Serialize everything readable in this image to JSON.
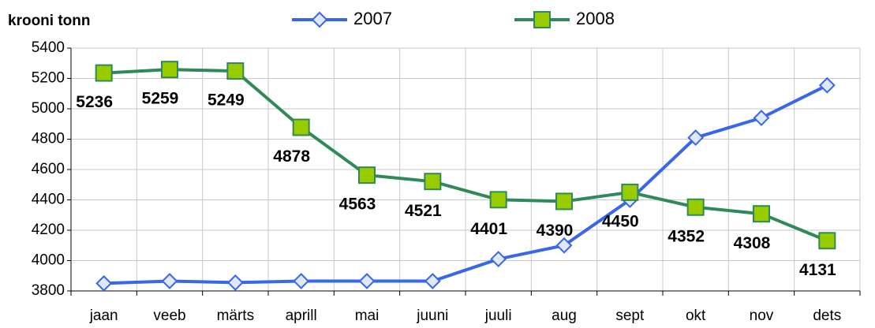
{
  "chart_data": {
    "type": "line",
    "y_label": "krooni tonn",
    "categories": [
      "jaan",
      "veeb",
      "märts",
      "aprill",
      "mai",
      "juuni",
      "juuli",
      "aug",
      "sept",
      "okt",
      "nov",
      "dets"
    ],
    "series": [
      {
        "name": "2007",
        "color": "#3a66e8",
        "marker": "diamond",
        "marker_fill": "#dfe8ff",
        "values": [
          3850,
          3865,
          3855,
          3865,
          3865,
          3865,
          4010,
          4100,
          4400,
          4810,
          4940,
          5155
        ]
      },
      {
        "name": "2008",
        "color": "#2e8b57",
        "marker": "square",
        "marker_fill": "#99cc00",
        "data_labels": true,
        "values": [
          5236,
          5259,
          5249,
          4878,
          4563,
          4521,
          4401,
          4390,
          4450,
          4352,
          4308,
          4131
        ]
      }
    ],
    "ylim": [
      3800,
      5400
    ],
    "yticks": [
      3800,
      4000,
      4200,
      4400,
      4600,
      4800,
      5000,
      5200,
      5400
    ],
    "grid": true
  }
}
